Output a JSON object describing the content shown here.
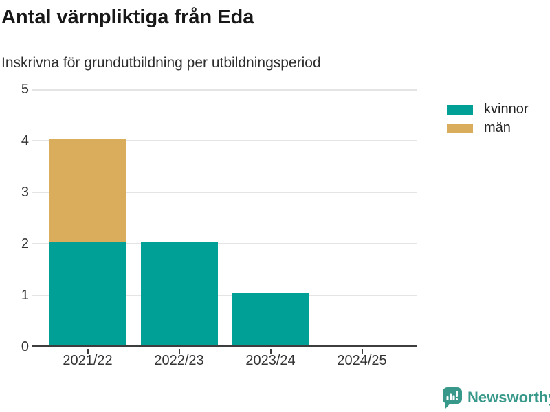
{
  "title": "Antal värnpliktiga från Eda",
  "subtitle": "Inskrivna för grundutbildning per utbildningsperiod",
  "branding": {
    "label": "Newsworthy",
    "icon": "newsworthy-logo-icon",
    "color": "#38998b"
  },
  "chart_data": {
    "type": "bar",
    "stacked": true,
    "title": "Antal värnpliktiga från Eda",
    "subtitle": "Inskrivna för grundutbildning per utbildningsperiod",
    "categories": [
      "2021/22",
      "2022/23",
      "2023/24",
      "2024/25"
    ],
    "series": [
      {
        "name": "kvinnor",
        "color": "#00a097",
        "values": [
          2,
          2,
          1,
          0
        ]
      },
      {
        "name": "män",
        "color": "#d9ad5c",
        "values": [
          2,
          0,
          0,
          0
        ]
      }
    ],
    "xlabel": "",
    "ylabel": "",
    "ylim": [
      0,
      5
    ],
    "yticks": [
      0,
      1,
      2,
      3,
      4,
      5
    ],
    "grid": "horizontal",
    "gridline_color": "#e4e4e4",
    "axis_color": "#3d3d3d",
    "legend_position": "top-right"
  }
}
